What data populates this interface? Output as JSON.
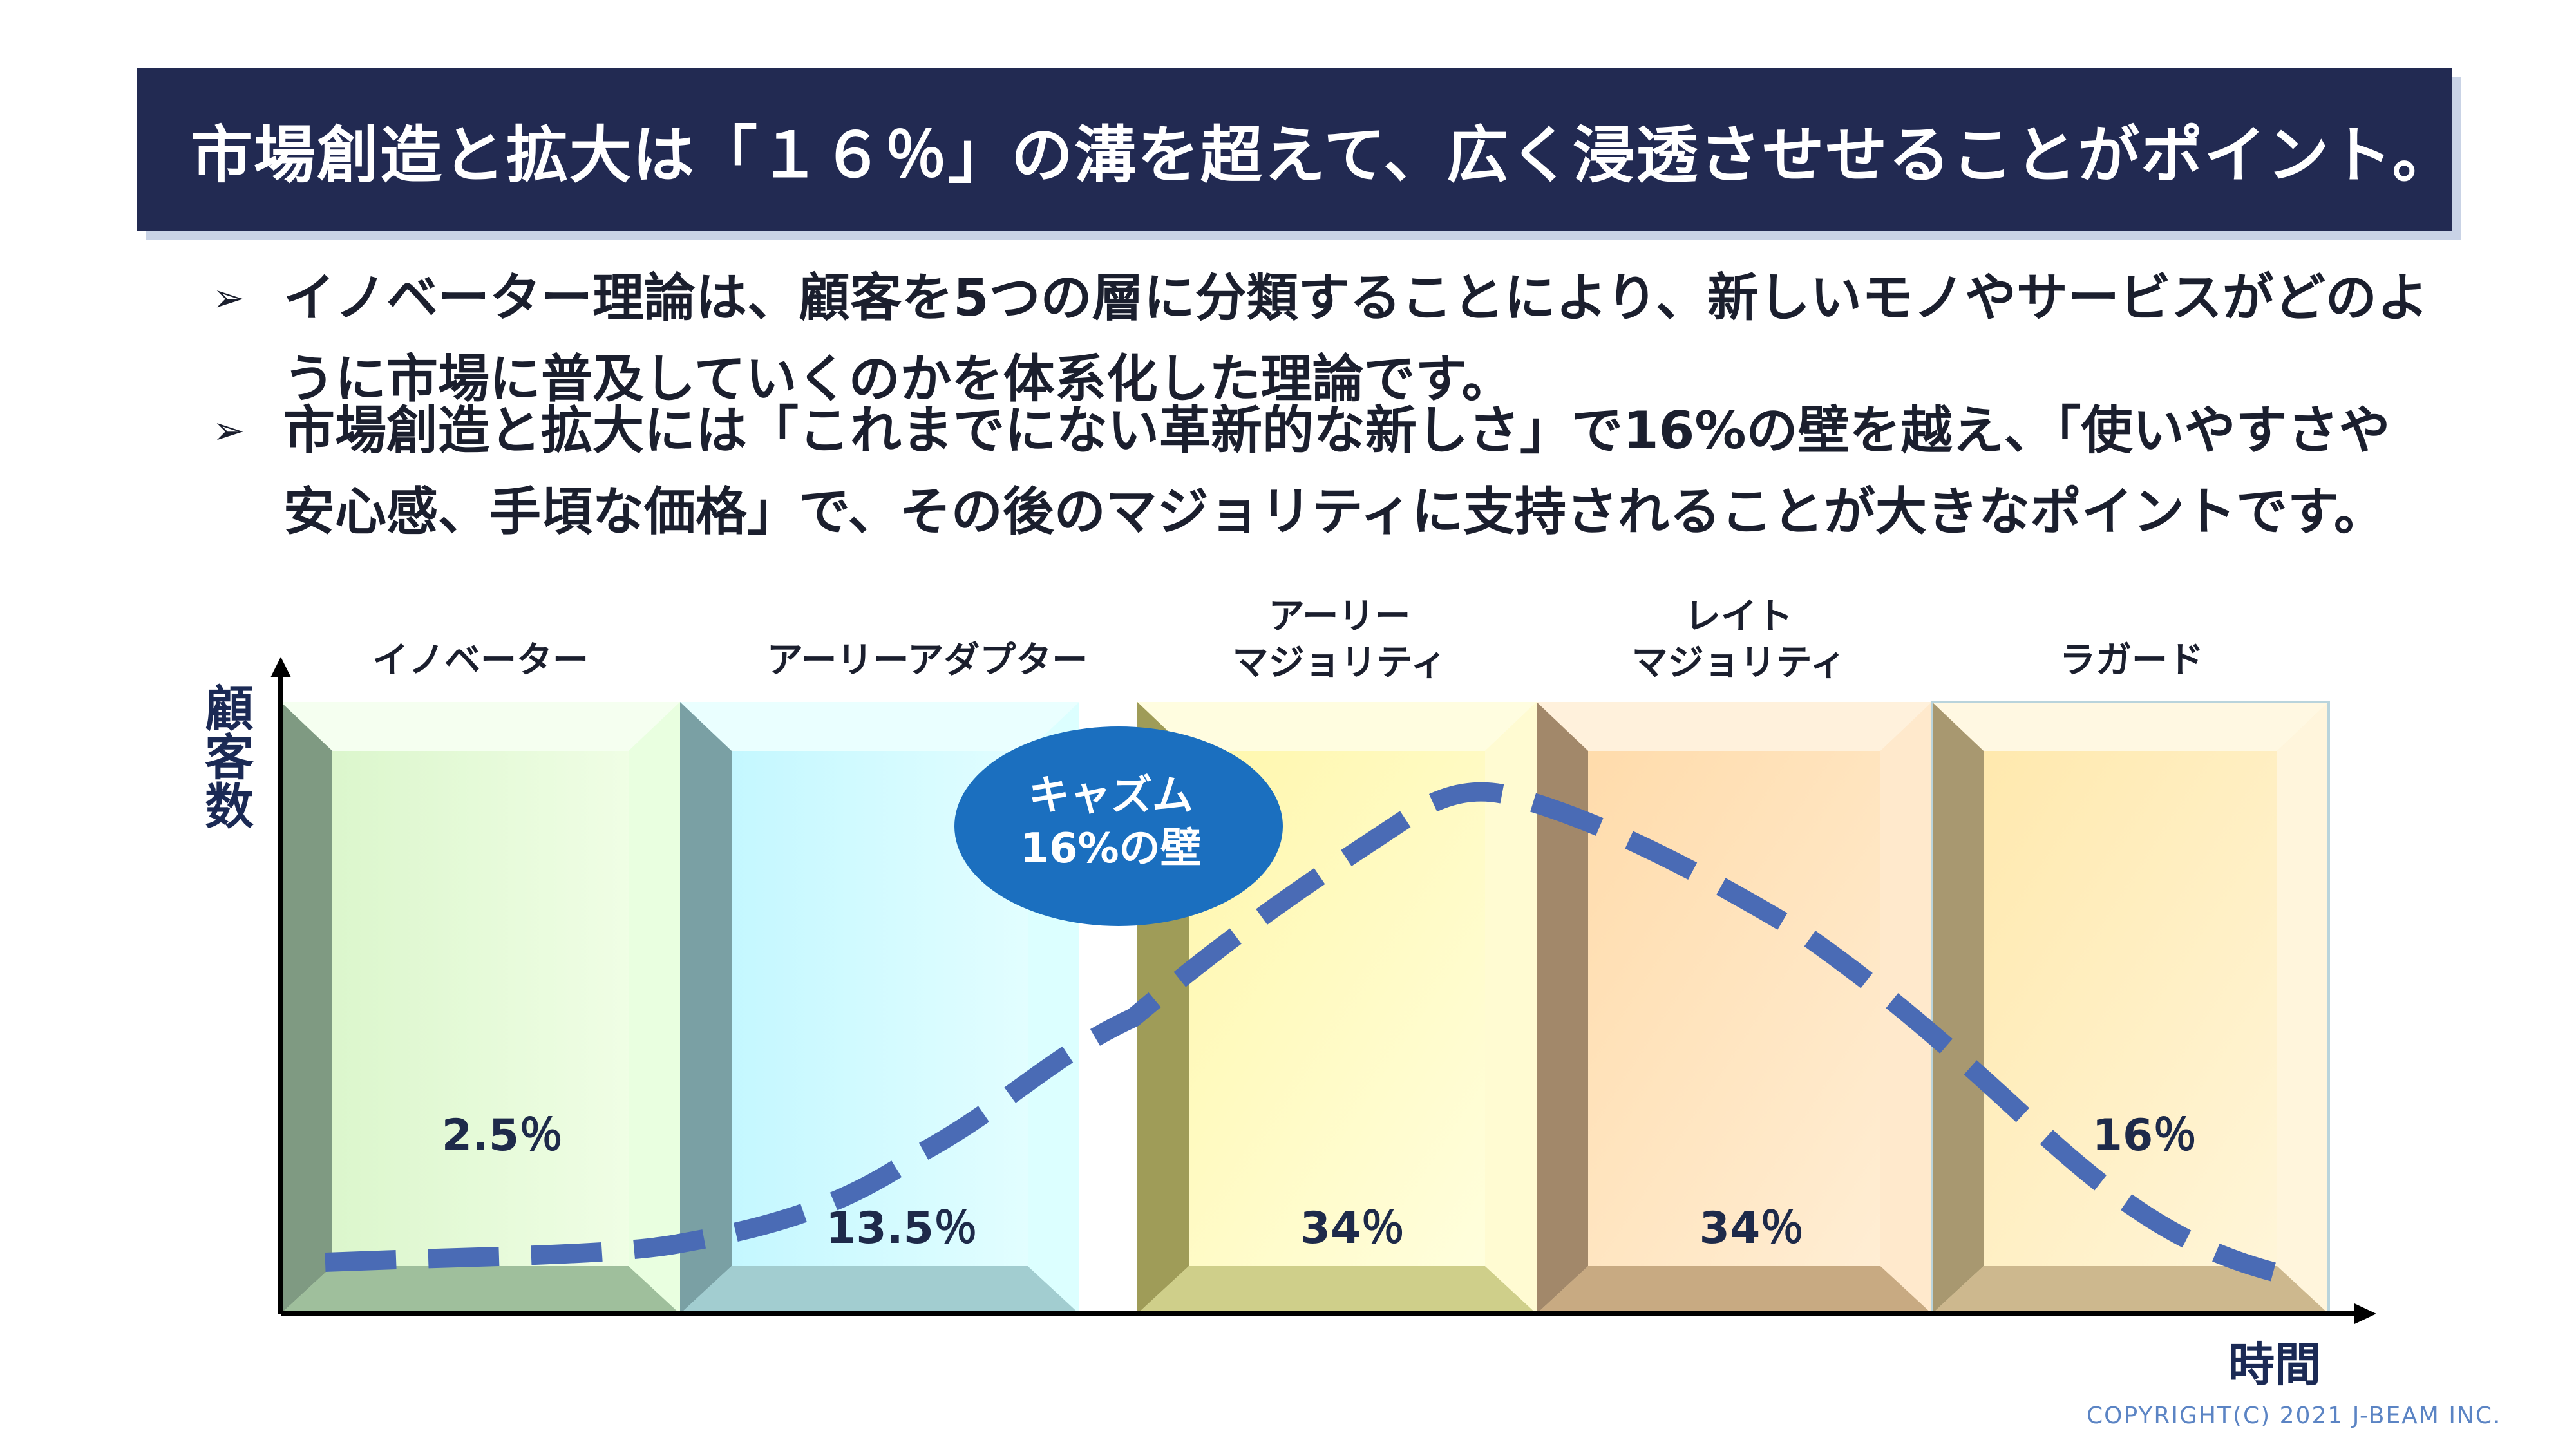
{
  "title": "市場創造と拡大は「１６％」の溝を超えて、広く浸透させせることがポイント。",
  "bullets": [
    {
      "mark": "➢",
      "text": "イノベーター理論は、顧客を5つの層に分類することにより、新しいモノやサービスがどのように市場に普及していくのかを体系化した理論です。"
    },
    {
      "mark": "➢",
      "text": "市場創造と拡大には「これまでにない革新的な新しさ」で16%の壁を越え、「使いやすさや安心感、手頃な価格」で、その後のマジョリティに支持されることが大きなポイントです。"
    }
  ],
  "segments": [
    {
      "name_line1": "",
      "name_line2": "イノベーター",
      "percent": "2.5％",
      "color_light": "#eaffd9",
      "color_dark": "#9fbf8f"
    },
    {
      "name_line1": "",
      "name_line2": "アーリーアダプター",
      "percent": "13.5％",
      "color_light": "#cffcff",
      "color_dark": "#8fc3c6"
    },
    {
      "name_line1": "アーリー",
      "name_line2": "マジョリティ",
      "percent": "34％",
      "color_light": "#ffffd0",
      "color_dark": "#c9c98a"
    },
    {
      "name_line1": "レイト",
      "name_line2": "マジョリティ",
      "percent": "34％",
      "color_light": "#ffe6c2",
      "color_dark": "#c2a27a"
    },
    {
      "name_line1": "",
      "name_line2": "ラガード",
      "percent": "16％",
      "color_light": "#fff1cc",
      "color_dark": "#c9b48a"
    }
  ],
  "chasm": {
    "line1": "キャズム",
    "line2": "16%の壁",
    "color": "#1b6fbf"
  },
  "axes": {
    "y_label": "顧客数",
    "x_label": "時間"
  },
  "curve_color": "#4a6bb5",
  "copyright": "COPYRIGHT(C) 2021  J-BEAM  INC."
}
